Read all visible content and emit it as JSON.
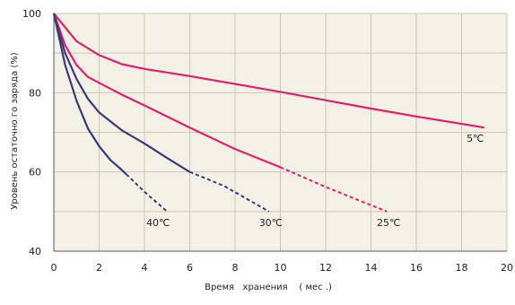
{
  "chart_data": {
    "type": "line",
    "xlabel": "Время   хранения    ( мес .)",
    "ylabel": "Уровень остаточно го заряда (%)",
    "xlim": [
      0,
      20
    ],
    "ylim": [
      40,
      100
    ],
    "xticks": [
      0,
      2,
      4,
      6,
      8,
      10,
      12,
      14,
      16,
      18,
      20
    ],
    "yticks": [
      40,
      60,
      80,
      100
    ],
    "grid": true,
    "series": [
      {
        "name": "5℃",
        "color": "#e0206a",
        "points": [
          [
            0,
            100
          ],
          [
            1,
            93
          ],
          [
            2,
            89.5
          ],
          [
            3,
            87.2
          ],
          [
            4,
            86
          ],
          [
            6,
            84.2
          ],
          [
            8,
            82.2
          ],
          [
            10,
            80.2
          ],
          [
            12,
            78.1
          ],
          [
            14,
            76
          ],
          [
            16,
            74
          ],
          [
            19,
            71.2
          ]
        ],
        "dashed_from_x": null
      },
      {
        "name": "25℃",
        "color": "#e0206a",
        "points": [
          [
            0,
            100
          ],
          [
            0.5,
            92
          ],
          [
            1,
            87
          ],
          [
            1.5,
            84
          ],
          [
            2,
            82.5
          ],
          [
            3,
            79.5
          ],
          [
            4,
            76.8
          ],
          [
            6,
            71.2
          ],
          [
            8,
            65.8
          ],
          [
            10,
            61.2
          ],
          [
            12,
            56.2
          ],
          [
            14.7,
            50
          ]
        ],
        "dashed_from_x": 10
      },
      {
        "name": "30℃",
        "color": "#3a3a7a",
        "points": [
          [
            0,
            100
          ],
          [
            0.5,
            90
          ],
          [
            1,
            83.5
          ],
          [
            1.5,
            78.5
          ],
          [
            2,
            75
          ],
          [
            3,
            70.5
          ],
          [
            4,
            67.2
          ],
          [
            5,
            63.5
          ],
          [
            6,
            60
          ],
          [
            7.5,
            56.5
          ],
          [
            9.5,
            50
          ]
        ],
        "dashed_from_x": 6
      },
      {
        "name": "40℃",
        "color": "#3a3a7a",
        "points": [
          [
            0,
            100
          ],
          [
            0.5,
            87
          ],
          [
            1,
            78
          ],
          [
            1.5,
            71
          ],
          [
            2,
            66.5
          ],
          [
            2.5,
            63
          ],
          [
            3,
            60.5
          ],
          [
            4,
            55
          ],
          [
            5,
            50
          ]
        ],
        "dashed_from_x": 3.2
      }
    ]
  }
}
